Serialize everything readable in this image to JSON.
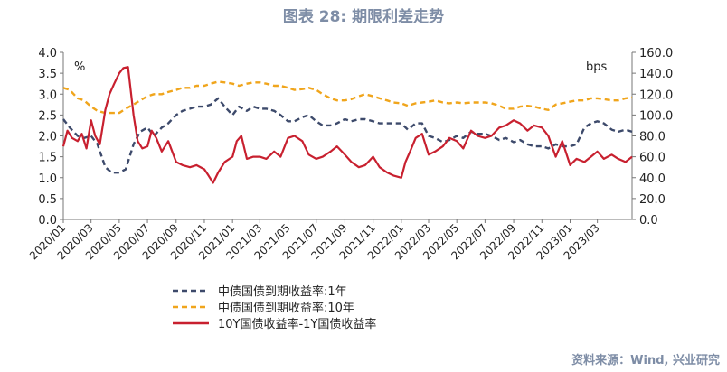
{
  "title": "图表 28: 期限利差走势",
  "source": "资料来源：Wind, 兴业研究",
  "chart_data": {
    "type": "line",
    "title": "图表 28: 期限利差走势",
    "left_axis": {
      "unit": "%",
      "ylim": [
        0,
        4.0
      ],
      "ticks": [
        "0.0",
        "0.5",
        "1.0",
        "1.5",
        "2.0",
        "2.5",
        "3.0",
        "3.5",
        "4.0"
      ]
    },
    "right_axis": {
      "unit": "bps",
      "ylim": [
        0,
        160
      ],
      "ticks": [
        "0.0",
        "20.0",
        "40.0",
        "60.0",
        "80.0",
        "100.0",
        "120.0",
        "140.0",
        "160.0"
      ]
    },
    "x_range": [
      "2020-01-01",
      "2023-05-15"
    ],
    "x_ticks": [
      "2020/01",
      "2020/03",
      "2020/05",
      "2020/07",
      "2020/09",
      "2020/11",
      "2021/01",
      "2021/03",
      "2021/05",
      "2021/07",
      "2021/09",
      "2021/11",
      "2022/01",
      "2022/03",
      "2022/05",
      "2022/07",
      "2022/09",
      "2022/11",
      "2023/01",
      "2023/03"
    ],
    "legend_position": "bottom",
    "grid": false,
    "series": [
      {
        "name": "中债国债到期收益率:1年",
        "axis": "left",
        "color": "#3d4a6b",
        "style": "dashed",
        "x": [
          "2020-01-01",
          "2020-01-15",
          "2020-02-01",
          "2020-02-15",
          "2020-03-01",
          "2020-03-15",
          "2020-04-01",
          "2020-04-15",
          "2020-05-01",
          "2020-05-15",
          "2020-06-01",
          "2020-06-15",
          "2020-07-01",
          "2020-07-15",
          "2020-08-01",
          "2020-08-15",
          "2020-09-01",
          "2020-09-15",
          "2020-10-01",
          "2020-10-15",
          "2020-11-01",
          "2020-11-15",
          "2020-12-01",
          "2020-12-15",
          "2021-01-01",
          "2021-01-15",
          "2021-02-01",
          "2021-02-15",
          "2021-03-01",
          "2021-03-15",
          "2021-04-01",
          "2021-04-15",
          "2021-05-01",
          "2021-05-15",
          "2021-06-01",
          "2021-06-15",
          "2021-07-01",
          "2021-07-15",
          "2021-08-01",
          "2021-08-15",
          "2021-09-01",
          "2021-09-15",
          "2021-10-01",
          "2021-10-15",
          "2021-11-01",
          "2021-11-15",
          "2021-12-01",
          "2021-12-15",
          "2022-01-01",
          "2022-01-15",
          "2022-02-01",
          "2022-02-15",
          "2022-03-01",
          "2022-03-15",
          "2022-04-01",
          "2022-04-15",
          "2022-05-01",
          "2022-05-15",
          "2022-06-01",
          "2022-06-15",
          "2022-07-01",
          "2022-07-15",
          "2022-08-01",
          "2022-08-15",
          "2022-09-01",
          "2022-09-15",
          "2022-10-01",
          "2022-10-15",
          "2022-11-01",
          "2022-11-15",
          "2022-12-01",
          "2022-12-15",
          "2023-01-01",
          "2023-01-15",
          "2023-02-01",
          "2023-02-15",
          "2023-03-01",
          "2023-03-15",
          "2023-04-01",
          "2023-04-15",
          "2023-05-01",
          "2023-05-15"
        ],
        "y": [
          2.4,
          2.2,
          2.0,
          1.95,
          2.0,
          1.8,
          1.25,
          1.12,
          1.12,
          1.2,
          1.8,
          2.1,
          2.2,
          2.0,
          2.2,
          2.3,
          2.5,
          2.6,
          2.65,
          2.7,
          2.7,
          2.75,
          2.9,
          2.7,
          2.5,
          2.7,
          2.6,
          2.7,
          2.65,
          2.65,
          2.6,
          2.5,
          2.35,
          2.35,
          2.45,
          2.5,
          2.35,
          2.25,
          2.25,
          2.3,
          2.4,
          2.35,
          2.4,
          2.4,
          2.35,
          2.3,
          2.3,
          2.3,
          2.3,
          2.15,
          2.3,
          2.3,
          2.0,
          1.95,
          1.85,
          1.9,
          2.0,
          1.95,
          2.1,
          2.05,
          2.05,
          2.0,
          1.9,
          1.95,
          1.85,
          1.9,
          1.8,
          1.75,
          1.75,
          1.7,
          1.8,
          1.75,
          1.75,
          1.8,
          2.2,
          2.3,
          2.35,
          2.3,
          2.15,
          2.1,
          2.15,
          2.1
        ]
      },
      {
        "name": "中债国债到期收益率:10年",
        "axis": "left",
        "color": "#f0a51c",
        "style": "dashed",
        "x": [
          "2020-01-01",
          "2020-01-15",
          "2020-02-01",
          "2020-02-15",
          "2020-03-01",
          "2020-03-15",
          "2020-04-01",
          "2020-04-15",
          "2020-05-01",
          "2020-05-15",
          "2020-06-01",
          "2020-06-15",
          "2020-07-01",
          "2020-07-15",
          "2020-08-01",
          "2020-08-15",
          "2020-09-01",
          "2020-09-15",
          "2020-10-01",
          "2020-10-15",
          "2020-11-01",
          "2020-11-15",
          "2020-12-01",
          "2020-12-15",
          "2021-01-01",
          "2021-01-15",
          "2021-02-01",
          "2021-02-15",
          "2021-03-01",
          "2021-03-15",
          "2021-04-01",
          "2021-04-15",
          "2021-05-01",
          "2021-05-15",
          "2021-06-01",
          "2021-06-15",
          "2021-07-01",
          "2021-07-15",
          "2021-08-01",
          "2021-08-15",
          "2021-09-01",
          "2021-09-15",
          "2021-10-01",
          "2021-10-15",
          "2021-11-01",
          "2021-11-15",
          "2021-12-01",
          "2021-12-15",
          "2022-01-01",
          "2022-01-15",
          "2022-02-01",
          "2022-02-15",
          "2022-03-01",
          "2022-03-15",
          "2022-04-01",
          "2022-04-15",
          "2022-05-01",
          "2022-05-15",
          "2022-06-01",
          "2022-06-15",
          "2022-07-01",
          "2022-07-15",
          "2022-08-01",
          "2022-08-15",
          "2022-09-01",
          "2022-09-15",
          "2022-10-01",
          "2022-10-15",
          "2022-11-01",
          "2022-11-15",
          "2022-12-01",
          "2022-12-15",
          "2023-01-01",
          "2023-01-15",
          "2023-02-01",
          "2023-02-15",
          "2023-03-01",
          "2023-03-15",
          "2023-04-01",
          "2023-04-15",
          "2023-05-01",
          "2023-05-15"
        ],
        "y": [
          3.15,
          3.1,
          2.9,
          2.85,
          2.7,
          2.6,
          2.55,
          2.55,
          2.55,
          2.65,
          2.75,
          2.85,
          2.95,
          3.0,
          3.0,
          3.05,
          3.1,
          3.15,
          3.15,
          3.2,
          3.2,
          3.25,
          3.3,
          3.28,
          3.25,
          3.2,
          3.25,
          3.28,
          3.28,
          3.25,
          3.2,
          3.2,
          3.15,
          3.1,
          3.12,
          3.15,
          3.1,
          3.0,
          2.9,
          2.85,
          2.85,
          2.88,
          2.95,
          3.0,
          2.95,
          2.9,
          2.85,
          2.8,
          2.78,
          2.72,
          2.78,
          2.8,
          2.82,
          2.85,
          2.8,
          2.78,
          2.8,
          2.78,
          2.8,
          2.8,
          2.8,
          2.78,
          2.72,
          2.65,
          2.65,
          2.7,
          2.72,
          2.7,
          2.65,
          2.62,
          2.75,
          2.78,
          2.82,
          2.85,
          2.85,
          2.9,
          2.9,
          2.88,
          2.85,
          2.85,
          2.9,
          2.92
        ]
      },
      {
        "name": "10Y国债收益率-1Y国债收益率",
        "axis": "right",
        "color": "#c8202f",
        "style": "solid",
        "x": [
          "2020-01-01",
          "2020-01-10",
          "2020-01-20",
          "2020-02-01",
          "2020-02-10",
          "2020-02-20",
          "2020-03-01",
          "2020-03-10",
          "2020-03-20",
          "2020-04-01",
          "2020-04-10",
          "2020-04-20",
          "2020-05-01",
          "2020-05-10",
          "2020-05-20",
          "2020-06-01",
          "2020-06-10",
          "2020-06-20",
          "2020-07-01",
          "2020-07-10",
          "2020-07-20",
          "2020-08-01",
          "2020-08-15",
          "2020-09-01",
          "2020-09-15",
          "2020-10-01",
          "2020-10-15",
          "2020-11-01",
          "2020-11-10",
          "2020-11-20",
          "2020-12-01",
          "2020-12-15",
          "2021-01-01",
          "2021-01-10",
          "2021-01-20",
          "2021-02-01",
          "2021-02-15",
          "2021-03-01",
          "2021-03-15",
          "2021-04-01",
          "2021-04-15",
          "2021-05-01",
          "2021-05-15",
          "2021-06-01",
          "2021-06-15",
          "2021-07-01",
          "2021-07-15",
          "2021-08-01",
          "2021-08-15",
          "2021-09-01",
          "2021-09-15",
          "2021-10-01",
          "2021-10-15",
          "2021-11-01",
          "2021-11-15",
          "2021-12-01",
          "2021-12-15",
          "2022-01-01",
          "2022-01-10",
          "2022-01-20",
          "2022-02-01",
          "2022-02-15",
          "2022-03-01",
          "2022-03-15",
          "2022-04-01",
          "2022-04-15",
          "2022-05-01",
          "2022-05-15",
          "2022-06-01",
          "2022-06-15",
          "2022-07-01",
          "2022-07-15",
          "2022-08-01",
          "2022-08-15",
          "2022-09-01",
          "2022-09-15",
          "2022-10-01",
          "2022-10-15",
          "2022-11-01",
          "2022-11-15",
          "2022-12-01",
          "2022-12-15",
          "2023-01-01",
          "2023-01-15",
          "2023-02-01",
          "2023-02-15",
          "2023-03-01",
          "2023-03-15",
          "2023-04-01",
          "2023-04-15",
          "2023-05-01",
          "2023-05-15"
        ],
        "y": [
          70,
          85,
          78,
          75,
          82,
          68,
          95,
          80,
          72,
          105,
          120,
          130,
          140,
          145,
          146,
          100,
          75,
          68,
          70,
          85,
          78,
          65,
          75,
          55,
          52,
          50,
          52,
          48,
          42,
          35,
          45,
          55,
          60,
          75,
          80,
          58,
          60,
          60,
          58,
          65,
          60,
          78,
          80,
          75,
          62,
          58,
          60,
          65,
          70,
          62,
          55,
          50,
          52,
          60,
          50,
          45,
          42,
          40,
          55,
          65,
          78,
          82,
          62,
          65,
          70,
          78,
          75,
          68,
          85,
          80,
          78,
          80,
          88,
          90,
          95,
          92,
          85,
          90,
          88,
          80,
          60,
          75,
          52,
          58,
          55,
          60,
          65,
          58,
          62,
          58,
          55,
          60
        ]
      }
    ]
  }
}
